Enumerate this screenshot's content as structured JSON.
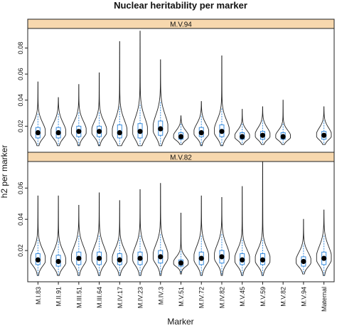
{
  "chart_data": {
    "type": "violin",
    "title": "Nuclear heritability per marker",
    "xlabel": "Marker",
    "ylabel": "h2 per marker",
    "categories": [
      "M.I.83",
      "M.II.91",
      "M.III.51",
      "M.III.64",
      "M.IV.17",
      "M.IV.23",
      "M.IV.3",
      "M.V.51",
      "M.IV.72",
      "M.IV.82",
      "M.V.45",
      "M.V.59",
      "M.V.82",
      "M.V.94",
      "Maternal"
    ],
    "colors": {
      "strip_fill": "#f7d8ae",
      "violin_line": "#222222",
      "box_line": "#3a8dde",
      "median_dot": "#000000"
    },
    "panels": [
      {
        "strip_label": "M.V.94",
        "ylim": [
          0,
          0.095
        ],
        "yticks": [
          0.02,
          0.04,
          0.06,
          0.08
        ],
        "ytick_labels": [
          "0.02",
          "0.04",
          "0.06",
          "0.08"
        ],
        "violins": [
          {
            "category": "M.I.83",
            "median": 0.015,
            "q1": 0.011,
            "q3": 0.019,
            "min": 0.005,
            "max": 0.054
          },
          {
            "category": "M.II.91",
            "median": 0.015,
            "q1": 0.011,
            "q3": 0.019,
            "min": 0.005,
            "max": 0.042
          },
          {
            "category": "M.III.51",
            "median": 0.016,
            "q1": 0.012,
            "q3": 0.02,
            "min": 0.005,
            "max": 0.052
          },
          {
            "category": "M.III.64",
            "median": 0.016,
            "q1": 0.012,
            "q3": 0.02,
            "min": 0.005,
            "max": 0.061
          },
          {
            "category": "M.IV.17",
            "median": 0.015,
            "q1": 0.011,
            "q3": 0.021,
            "min": 0.005,
            "max": 0.085
          },
          {
            "category": "M.IV.23",
            "median": 0.016,
            "q1": 0.011,
            "q3": 0.022,
            "min": 0.005,
            "max": 0.093
          },
          {
            "category": "M.IV.3",
            "median": 0.018,
            "q1": 0.013,
            "q3": 0.024,
            "min": 0.005,
            "max": 0.071
          },
          {
            "category": "M.V.51",
            "median": 0.012,
            "q1": 0.01,
            "q3": 0.015,
            "min": 0.006,
            "max": 0.028
          },
          {
            "category": "M.IV.72",
            "median": 0.015,
            "q1": 0.012,
            "q3": 0.019,
            "min": 0.005,
            "max": 0.039
          },
          {
            "category": "M.IV.82",
            "median": 0.016,
            "q1": 0.012,
            "q3": 0.021,
            "min": 0.005,
            "max": 0.074
          },
          {
            "category": "M.V.45",
            "median": 0.012,
            "q1": 0.01,
            "q3": 0.015,
            "min": 0.006,
            "max": 0.033
          },
          {
            "category": "M.V.59",
            "median": 0.013,
            "q1": 0.01,
            "q3": 0.016,
            "min": 0.006,
            "max": 0.035
          },
          {
            "category": "M.V.82",
            "median": 0.012,
            "q1": 0.01,
            "q3": 0.015,
            "min": 0.006,
            "max": 0.04
          },
          {
            "category": "Maternal",
            "median": 0.013,
            "q1": 0.01,
            "q3": 0.016,
            "min": 0.006,
            "max": 0.035
          }
        ]
      },
      {
        "strip_label": "M.V.82",
        "ylim": [
          0,
          0.077
        ],
        "yticks": [
          0.02,
          0.04,
          0.06
        ],
        "ytick_labels": [
          "0.02",
          "0.04",
          "0.06"
        ],
        "violins": [
          {
            "category": "M.I.83",
            "median": 0.014,
            "q1": 0.011,
            "q3": 0.018,
            "min": 0.004,
            "max": 0.055
          },
          {
            "category": "M.II.91",
            "median": 0.013,
            "q1": 0.01,
            "q3": 0.017,
            "min": 0.004,
            "max": 0.055
          },
          {
            "category": "M.III.51",
            "median": 0.015,
            "q1": 0.011,
            "q3": 0.019,
            "min": 0.004,
            "max": 0.049
          },
          {
            "category": "M.III.64",
            "median": 0.015,
            "q1": 0.011,
            "q3": 0.019,
            "min": 0.004,
            "max": 0.057
          },
          {
            "category": "M.IV.17",
            "median": 0.014,
            "q1": 0.011,
            "q3": 0.018,
            "min": 0.004,
            "max": 0.052
          },
          {
            "category": "M.IV.23",
            "median": 0.015,
            "q1": 0.011,
            "q3": 0.019,
            "min": 0.004,
            "max": 0.059
          },
          {
            "category": "M.IV.3",
            "median": 0.016,
            "q1": 0.012,
            "q3": 0.02,
            "min": 0.004,
            "max": 0.063
          },
          {
            "category": "M.V.51",
            "median": 0.012,
            "q1": 0.01,
            "q3": 0.014,
            "min": 0.005,
            "max": 0.044
          },
          {
            "category": "M.IV.72",
            "median": 0.015,
            "q1": 0.011,
            "q3": 0.019,
            "min": 0.004,
            "max": 0.055
          },
          {
            "category": "M.IV.82",
            "median": 0.016,
            "q1": 0.012,
            "q3": 0.02,
            "min": 0.004,
            "max": 0.054
          },
          {
            "category": "M.V.45",
            "median": 0.014,
            "q1": 0.011,
            "q3": 0.018,
            "min": 0.004,
            "max": 0.061
          },
          {
            "category": "M.V.59",
            "median": 0.014,
            "q1": 0.011,
            "q3": 0.018,
            "min": 0.004,
            "max": 0.077
          },
          {
            "category": "M.V.94",
            "median": 0.013,
            "q1": 0.01,
            "q3": 0.016,
            "min": 0.005,
            "max": 0.04
          },
          {
            "category": "Maternal",
            "median": 0.015,
            "q1": 0.011,
            "q3": 0.019,
            "min": 0.004,
            "max": 0.046
          }
        ]
      }
    ]
  }
}
